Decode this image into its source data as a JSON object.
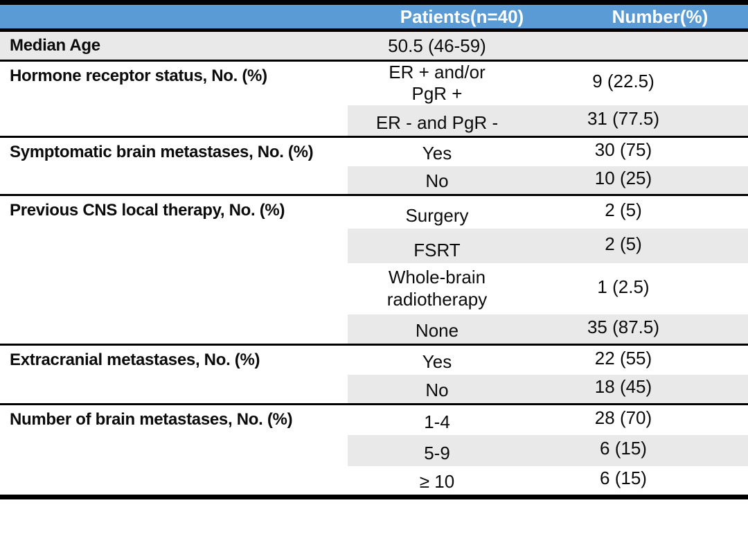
{
  "table": {
    "header": {
      "patients_label": "Patients(n=40)",
      "number_label": "Number(%)"
    },
    "sections": [
      {
        "label": "Median Age",
        "rows": [
          {
            "patients": "50.5 (46-59)",
            "number": ""
          }
        ]
      },
      {
        "label": "Hormone receptor status, No. (%)",
        "rows": [
          {
            "patients": "ER + and/or\nPgR +",
            "number": "9 (22.5)"
          },
          {
            "patients": "ER - and PgR -",
            "number": "31 (77.5)"
          }
        ]
      },
      {
        "label": "Symptomatic brain metastases, No. (%)",
        "rows": [
          {
            "patients": "Yes",
            "number": "30 (75)"
          },
          {
            "patients": "No",
            "number": "10 (25)"
          }
        ]
      },
      {
        "label": "Previous CNS local therapy, No. (%)",
        "rows": [
          {
            "patients": "Surgery",
            "number": "2 (5)"
          },
          {
            "patients": "FSRT",
            "number": "2 (5)"
          },
          {
            "patients": "Whole-brain\nradiotherapy",
            "number": "1 (2.5)"
          },
          {
            "patients": "None",
            "number": "35 (87.5)"
          }
        ]
      },
      {
        "label": "Extracranial metastases, No. (%)",
        "rows": [
          {
            "patients": "Yes",
            "number": "22 (55)"
          },
          {
            "patients": "No",
            "number": "18 (45)"
          }
        ]
      },
      {
        "label": "Number of brain metastases, No. (%)",
        "rows": [
          {
            "patients": "1-4",
            "number": "28 (70)"
          },
          {
            "patients": "5-9",
            "number": "6 (15)"
          },
          {
            "patients": "≥ 10",
            "number": "6 (15)"
          }
        ]
      }
    ],
    "colors": {
      "header_bg": "#5B9BD5",
      "header_text": "#FFFFFF",
      "band_bg": "#E9E9E9",
      "rule": "#000000"
    }
  }
}
